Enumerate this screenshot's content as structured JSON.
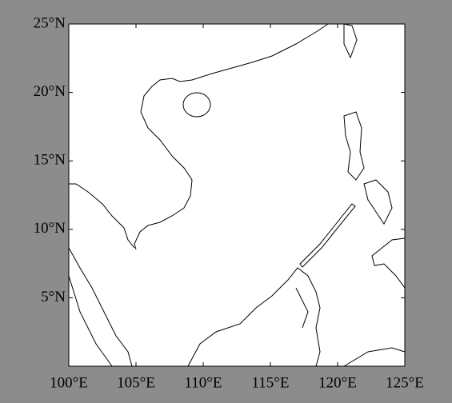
{
  "map": {
    "xlim": [
      100,
      125
    ],
    "ylim": [
      0,
      25
    ],
    "xticks": [
      {
        "value": 100,
        "label": "100°E"
      },
      {
        "value": 105,
        "label": "105°E"
      },
      {
        "value": 110,
        "label": "110°E"
      },
      {
        "value": 115,
        "label": "115°E"
      },
      {
        "value": 120,
        "label": "120°E"
      },
      {
        "value": 125,
        "label": "125°E"
      }
    ],
    "yticks": [
      {
        "value": 5,
        "label": "5°N"
      },
      {
        "value": 10,
        "label": "10°N"
      },
      {
        "value": 15,
        "label": "15°N"
      },
      {
        "value": 20,
        "label": "20°N"
      },
      {
        "value": 25,
        "label": "25°N"
      }
    ]
  }
}
